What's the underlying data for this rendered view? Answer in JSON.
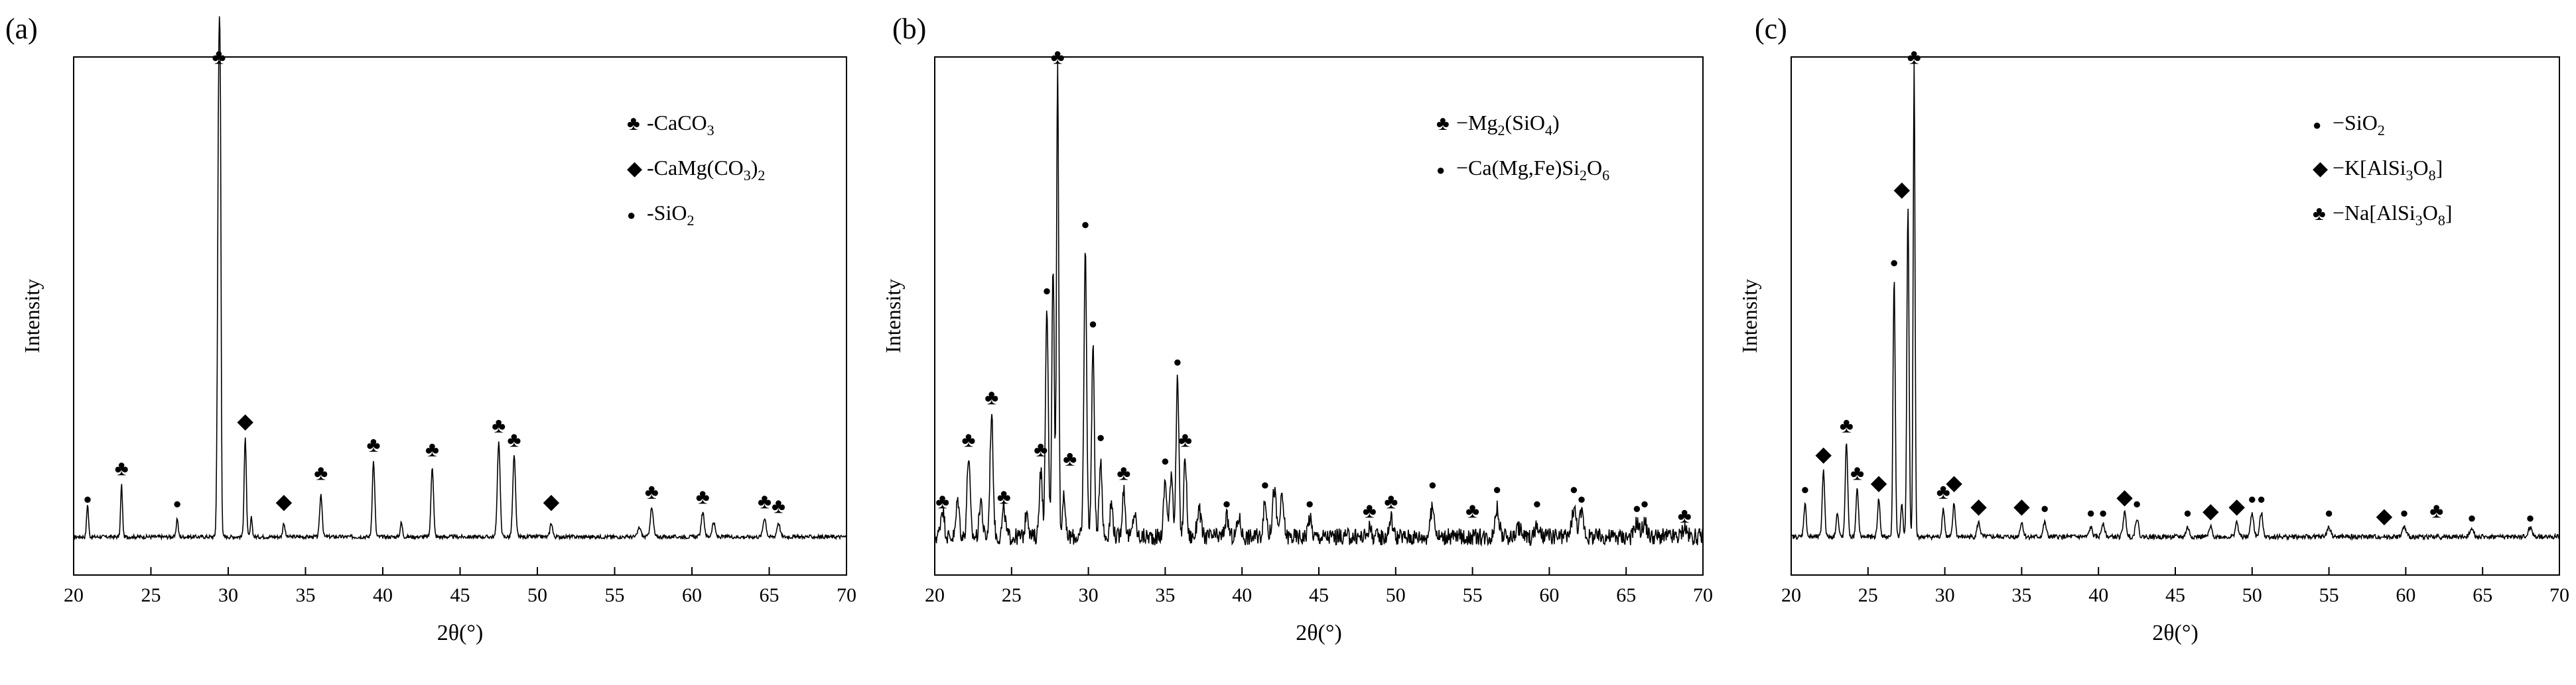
{
  "chart_data": [
    {
      "type": "line",
      "panel_label": "(a)",
      "xlabel": "2θ(°)",
      "ylabel": "Intensity",
      "xlim": [
        20,
        70
      ],
      "xticks": [
        20,
        25,
        30,
        35,
        40,
        45,
        50,
        55,
        60,
        65,
        70
      ],
      "y_tick_labels": false,
      "baseline": 0.05,
      "peaks": [
        [
          20.9,
          0.07,
          0.06
        ],
        [
          23.1,
          0.11,
          0.06
        ],
        [
          26.7,
          0.04,
          0.06
        ],
        [
          29.4,
          1.0,
          0.08
        ],
        [
          29.5,
          0.45,
          0.05
        ],
        [
          31.1,
          0.21,
          0.07
        ],
        [
          31.5,
          0.04,
          0.06
        ],
        [
          33.6,
          0.03,
          0.07
        ],
        [
          36.0,
          0.09,
          0.08
        ],
        [
          39.4,
          0.16,
          0.08
        ],
        [
          41.2,
          0.03,
          0.07
        ],
        [
          43.2,
          0.15,
          0.08
        ],
        [
          47.5,
          0.2,
          0.09
        ],
        [
          48.5,
          0.17,
          0.09
        ],
        [
          50.9,
          0.03,
          0.08
        ],
        [
          56.6,
          0.02,
          0.1
        ],
        [
          57.4,
          0.06,
          0.1
        ],
        [
          60.7,
          0.05,
          0.1
        ],
        [
          61.4,
          0.03,
          0.1
        ],
        [
          64.7,
          0.04,
          0.1
        ],
        [
          65.6,
          0.03,
          0.1
        ]
      ],
      "noise": 0.004,
      "markers": [
        {
          "s": "●",
          "x": 20.9,
          "y": 0.12
        },
        {
          "s": "♣",
          "x": 23.1,
          "y": 0.18
        },
        {
          "s": "●",
          "x": 26.7,
          "y": 0.11
        },
        {
          "s": "♣",
          "x": 29.4,
          "y": 1.05
        },
        {
          "s": "◆",
          "x": 31.1,
          "y": 0.28
        },
        {
          "s": "◆",
          "x": 33.6,
          "y": 0.11
        },
        {
          "s": "♣",
          "x": 36.0,
          "y": 0.17
        },
        {
          "s": "♣",
          "x": 39.4,
          "y": 0.23
        },
        {
          "s": "♣",
          "x": 43.2,
          "y": 0.22
        },
        {
          "s": "♣",
          "x": 47.5,
          "y": 0.27
        },
        {
          "s": "♣",
          "x": 48.5,
          "y": 0.24
        },
        {
          "s": "◆",
          "x": 50.9,
          "y": 0.11
        },
        {
          "s": "♣",
          "x": 57.4,
          "y": 0.13
        },
        {
          "s": "♣",
          "x": 60.7,
          "y": 0.12
        },
        {
          "s": "♣",
          "x": 64.7,
          "y": 0.11
        },
        {
          "s": "♣",
          "x": 65.6,
          "y": 0.1
        }
      ],
      "legend": [
        {
          "symbol": "♣",
          "text": "-CaCO",
          "sub": "3",
          "tail": ""
        },
        {
          "symbol": "◆",
          "text": "-CaMg(CO",
          "sub": "3",
          "tail": ")",
          "sub2": "2"
        },
        {
          "symbol": "●",
          "text": "-SiO",
          "sub": "2",
          "tail": ""
        }
      ]
    },
    {
      "type": "line",
      "panel_label": "(b)",
      "xlabel": "2θ(°)",
      "ylabel": "Intensity",
      "xlim": [
        20,
        70
      ],
      "xticks": [
        20,
        25,
        30,
        35,
        40,
        45,
        50,
        55,
        60,
        65,
        70
      ],
      "y_tick_labels": false,
      "baseline": 0.05,
      "peaks": [
        [
          20.5,
          0.06,
          0.12
        ],
        [
          21.5,
          0.08,
          0.1
        ],
        [
          22.2,
          0.17,
          0.1
        ],
        [
          23.0,
          0.08,
          0.1
        ],
        [
          23.7,
          0.26,
          0.1
        ],
        [
          24.5,
          0.06,
          0.1
        ],
        [
          26.0,
          0.06,
          0.1
        ],
        [
          26.9,
          0.14,
          0.1
        ],
        [
          27.3,
          0.48,
          0.09
        ],
        [
          27.7,
          0.58,
          0.08
        ],
        [
          28.0,
          1.0,
          0.07
        ],
        [
          28.4,
          0.1,
          0.08
        ],
        [
          29.8,
          0.6,
          0.09
        ],
        [
          30.3,
          0.4,
          0.09
        ],
        [
          30.8,
          0.17,
          0.09
        ],
        [
          31.5,
          0.07,
          0.1
        ],
        [
          32.3,
          0.1,
          0.1
        ],
        [
          33.0,
          0.05,
          0.1
        ],
        [
          35.0,
          0.12,
          0.1
        ],
        [
          35.4,
          0.14,
          0.1
        ],
        [
          35.8,
          0.33,
          0.09
        ],
        [
          36.3,
          0.17,
          0.09
        ],
        [
          37.2,
          0.06,
          0.12
        ],
        [
          39.0,
          0.04,
          0.12
        ],
        [
          39.8,
          0.04,
          0.12
        ],
        [
          41.5,
          0.07,
          0.12
        ],
        [
          42.1,
          0.1,
          0.12
        ],
        [
          42.6,
          0.08,
          0.12
        ],
        [
          44.4,
          0.04,
          0.12
        ],
        [
          48.3,
          0.02,
          0.12
        ],
        [
          49.7,
          0.04,
          0.12
        ],
        [
          52.4,
          0.06,
          0.14
        ],
        [
          56.6,
          0.06,
          0.14
        ],
        [
          58.0,
          0.02,
          0.14
        ],
        [
          59.2,
          0.02,
          0.14
        ],
        [
          61.6,
          0.06,
          0.14
        ],
        [
          62.1,
          0.05,
          0.14
        ],
        [
          65.7,
          0.03,
          0.14
        ],
        [
          66.2,
          0.03,
          0.14
        ],
        [
          68.8,
          0.02,
          0.14
        ]
      ],
      "noise": 0.018,
      "markers": [
        {
          "s": "♣",
          "x": 20.5,
          "y": 0.11
        },
        {
          "s": "♣",
          "x": 22.2,
          "y": 0.24
        },
        {
          "s": "♣",
          "x": 23.7,
          "y": 0.33
        },
        {
          "s": "♣",
          "x": 24.5,
          "y": 0.12
        },
        {
          "s": "♣",
          "x": 26.9,
          "y": 0.22
        },
        {
          "s": "●",
          "x": 27.3,
          "y": 0.56
        },
        {
          "s": "♣",
          "x": 28.0,
          "y": 1.05
        },
        {
          "s": "♣",
          "x": 28.8,
          "y": 0.2
        },
        {
          "s": "●",
          "x": 29.8,
          "y": 0.7
        },
        {
          "s": "●",
          "x": 30.3,
          "y": 0.49
        },
        {
          "s": "●",
          "x": 30.8,
          "y": 0.25
        },
        {
          "s": "♣",
          "x": 32.3,
          "y": 0.17
        },
        {
          "s": "●",
          "x": 35.0,
          "y": 0.2
        },
        {
          "s": "●",
          "x": 35.8,
          "y": 0.41
        },
        {
          "s": "♣",
          "x": 36.3,
          "y": 0.24
        },
        {
          "s": "●",
          "x": 39.0,
          "y": 0.11
        },
        {
          "s": "●",
          "x": 41.5,
          "y": 0.15
        },
        {
          "s": "●",
          "x": 44.4,
          "y": 0.11
        },
        {
          "s": "♣",
          "x": 48.3,
          "y": 0.09
        },
        {
          "s": "♣",
          "x": 49.7,
          "y": 0.11
        },
        {
          "s": "●",
          "x": 52.4,
          "y": 0.15
        },
        {
          "s": "♣",
          "x": 55.0,
          "y": 0.09
        },
        {
          "s": "●",
          "x": 56.6,
          "y": 0.14
        },
        {
          "s": "●",
          "x": 59.2,
          "y": 0.11
        },
        {
          "s": "●",
          "x": 61.6,
          "y": 0.14
        },
        {
          "s": "●",
          "x": 62.1,
          "y": 0.12
        },
        {
          "s": "●",
          "x": 65.7,
          "y": 0.1
        },
        {
          "s": "●",
          "x": 66.2,
          "y": 0.11
        },
        {
          "s": "♣",
          "x": 68.8,
          "y": 0.08
        }
      ],
      "legend": [
        {
          "symbol": "♣",
          "text": "−Mg",
          "sub": "2",
          "tail": "(SiO",
          "sub2": "4",
          "tail2": ")"
        },
        {
          "symbol": "●",
          "text": "−Ca(Mg,Fe)Si",
          "sub": "2",
          "tail": "O",
          "sub2": "6"
        }
      ]
    },
    {
      "type": "line",
      "panel_label": "(c)",
      "xlabel": "2θ(°)",
      "ylabel": "Intensity",
      "xlim": [
        20,
        70
      ],
      "xticks": [
        20,
        25,
        30,
        35,
        40,
        45,
        50,
        55,
        60,
        65,
        70
      ],
      "y_tick_labels": false,
      "baseline": 0.05,
      "peaks": [
        [
          20.9,
          0.07,
          0.08
        ],
        [
          22.1,
          0.14,
          0.08
        ],
        [
          23.0,
          0.05,
          0.08
        ],
        [
          23.6,
          0.2,
          0.08
        ],
        [
          24.3,
          0.1,
          0.08
        ],
        [
          25.7,
          0.08,
          0.08
        ],
        [
          26.7,
          0.55,
          0.07
        ],
        [
          27.2,
          0.07,
          0.07
        ],
        [
          27.6,
          0.7,
          0.07
        ],
        [
          28.0,
          1.0,
          0.06
        ],
        [
          29.9,
          0.06,
          0.08
        ],
        [
          30.6,
          0.07,
          0.08
        ],
        [
          32.2,
          0.03,
          0.1
        ],
        [
          35.0,
          0.03,
          0.1
        ],
        [
          36.5,
          0.03,
          0.1
        ],
        [
          39.5,
          0.02,
          0.1
        ],
        [
          40.3,
          0.03,
          0.1
        ],
        [
          41.7,
          0.05,
          0.1
        ],
        [
          42.5,
          0.04,
          0.1
        ],
        [
          45.8,
          0.02,
          0.1
        ],
        [
          47.3,
          0.02,
          0.1
        ],
        [
          49.0,
          0.03,
          0.1
        ],
        [
          50.0,
          0.05,
          0.1
        ],
        [
          50.6,
          0.05,
          0.1
        ],
        [
          55.0,
          0.02,
          0.12
        ],
        [
          59.9,
          0.02,
          0.12
        ],
        [
          64.3,
          0.02,
          0.12
        ],
        [
          68.1,
          0.02,
          0.12
        ]
      ],
      "noise": 0.005,
      "markers": [
        {
          "s": "●",
          "x": 20.9,
          "y": 0.14
        },
        {
          "s": "◆",
          "x": 22.1,
          "y": 0.21
        },
        {
          "s": "♣",
          "x": 23.6,
          "y": 0.27
        },
        {
          "s": "♣",
          "x": 24.3,
          "y": 0.17
        },
        {
          "s": "◆",
          "x": 25.7,
          "y": 0.15
        },
        {
          "s": "●",
          "x": 26.7,
          "y": 0.62
        },
        {
          "s": "◆",
          "x": 27.2,
          "y": 0.77
        },
        {
          "s": "♣",
          "x": 28.0,
          "y": 1.05
        },
        {
          "s": "♣",
          "x": 29.9,
          "y": 0.13
        },
        {
          "s": "◆",
          "x": 30.6,
          "y": 0.15
        },
        {
          "s": "◆",
          "x": 32.2,
          "y": 0.1
        },
        {
          "s": "◆",
          "x": 35.0,
          "y": 0.1
        },
        {
          "s": "●",
          "x": 36.5,
          "y": 0.1
        },
        {
          "s": "●",
          "x": 39.5,
          "y": 0.09
        },
        {
          "s": "●",
          "x": 40.3,
          "y": 0.09
        },
        {
          "s": "◆",
          "x": 41.7,
          "y": 0.12
        },
        {
          "s": "●",
          "x": 42.5,
          "y": 0.11
        },
        {
          "s": "●",
          "x": 45.8,
          "y": 0.09
        },
        {
          "s": "◆",
          "x": 47.3,
          "y": 0.09
        },
        {
          "s": "◆",
          "x": 49.0,
          "y": 0.1
        },
        {
          "s": "●",
          "x": 50.0,
          "y": 0.12
        },
        {
          "s": "●",
          "x": 50.6,
          "y": 0.12
        },
        {
          "s": "●",
          "x": 55.0,
          "y": 0.09
        },
        {
          "s": "◆",
          "x": 58.6,
          "y": 0.08
        },
        {
          "s": "●",
          "x": 59.9,
          "y": 0.09
        },
        {
          "s": "♣",
          "x": 62.0,
          "y": 0.09
        },
        {
          "s": "●",
          "x": 64.3,
          "y": 0.08
        },
        {
          "s": "●",
          "x": 68.1,
          "y": 0.08
        }
      ],
      "legend": [
        {
          "symbol": "●",
          "text": "−SiO",
          "sub": "2",
          "tail": ""
        },
        {
          "symbol": "◆",
          "text": "−K[AlSi",
          "sub": "3",
          "tail": "O",
          "sub2": "8",
          "tail2": "]"
        },
        {
          "symbol": "♣",
          "text": "−Na[AlSi",
          "sub": "3",
          "tail": "O",
          "sub2": "8",
          "tail2": "]"
        }
      ]
    }
  ]
}
